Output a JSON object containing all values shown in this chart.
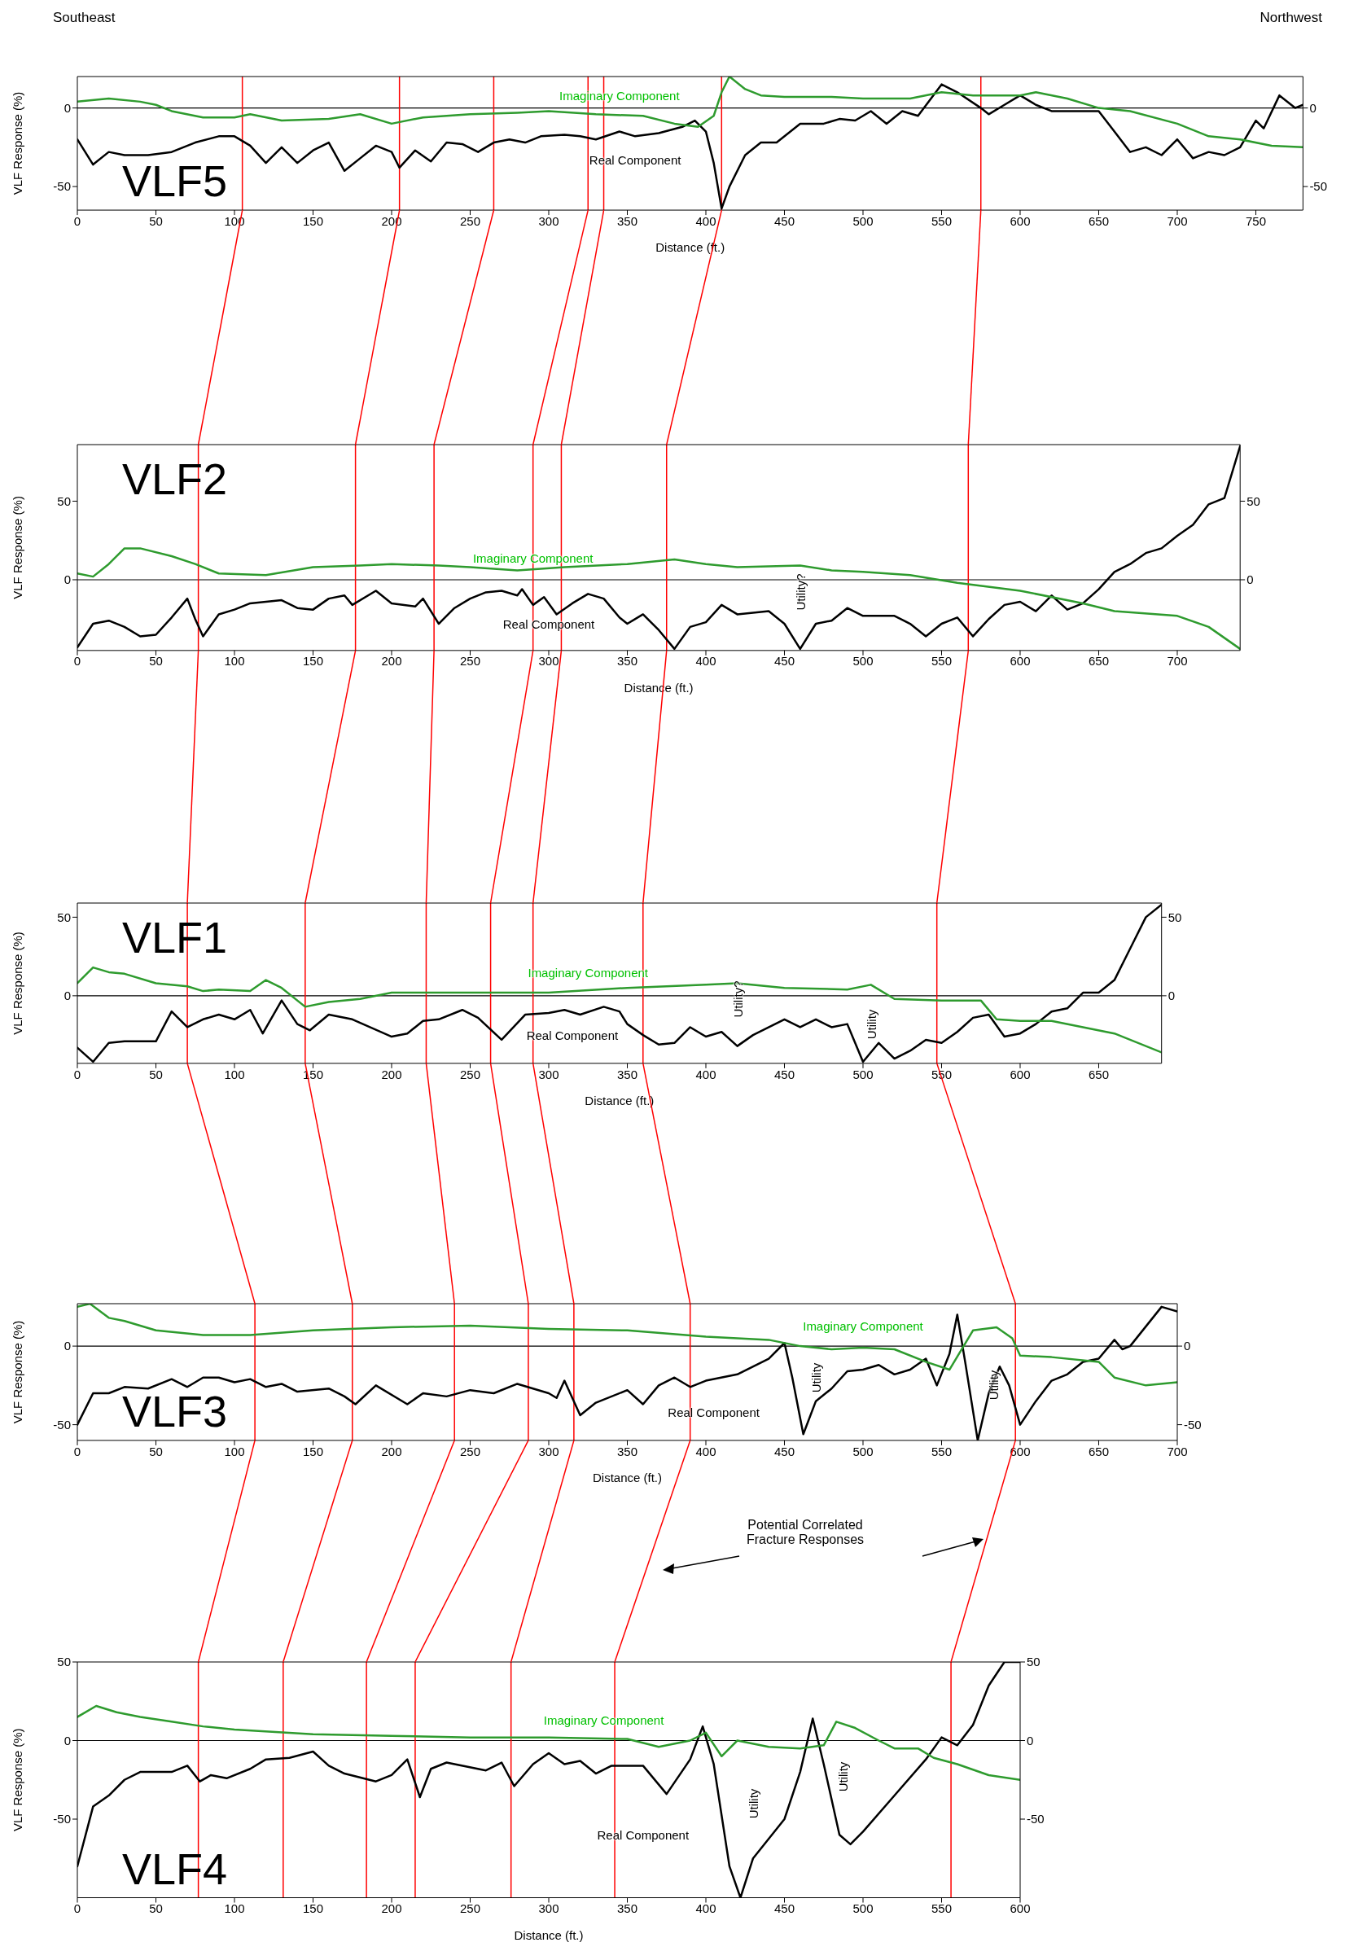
{
  "chart_data": [
    {
      "type": "line",
      "title": "VLF5",
      "xlabel": "Distance (ft.)",
      "ylabel": "VLF Response (%)",
      "xlim": [
        0,
        780
      ],
      "ylim": [
        -65,
        20
      ],
      "y2lim": [
        -65,
        20
      ],
      "line_style": "solid",
      "xticks": [
        0,
        50,
        100,
        150,
        200,
        250,
        300,
        350,
        400,
        450,
        500,
        550,
        600,
        650,
        700,
        750
      ],
      "yticks": [
        -50,
        0
      ],
      "y2ticks": [
        -50,
        0
      ],
      "series": [
        {
          "color": "#000000",
          "x": [
            0,
            10,
            20,
            30,
            45,
            60,
            75,
            90,
            100,
            110,
            120,
            130,
            140,
            150,
            160,
            170,
            180,
            190,
            200,
            205,
            215,
            225,
            235,
            245,
            255,
            265,
            275,
            285,
            295,
            310,
            320,
            330,
            345,
            355,
            370,
            385,
            393,
            400,
            405,
            410,
            415,
            425,
            435,
            445,
            460,
            475,
            485,
            495,
            505,
            515,
            525,
            535,
            550,
            560,
            575,
            580,
            590,
            600,
            610,
            620,
            640,
            650,
            660,
            670,
            680,
            690,
            700,
            710,
            720,
            730,
            740,
            750,
            755,
            765,
            775,
            780
          ],
          "values": [
            -20,
            -36,
            -28,
            -30,
            -30,
            -28,
            -22,
            -18,
            -18,
            -24,
            -35,
            -25,
            -35,
            -27,
            -22,
            -40,
            -32,
            -24,
            -28,
            -38,
            -27,
            -34,
            -22,
            -23,
            -28,
            -22,
            -20,
            -22,
            -18,
            -17,
            -18,
            -20,
            -15,
            -18,
            -16,
            -12,
            -8,
            -15,
            -35,
            -64,
            -50,
            -30,
            -22,
            -22,
            -10,
            -10,
            -7,
            -8,
            -2,
            -10,
            -2,
            -5,
            15,
            10,
            0,
            -4,
            2,
            8,
            2,
            -2,
            -2,
            -2,
            -15,
            -28,
            -25,
            -30,
            -20,
            -32,
            -28,
            -30,
            -25,
            -8,
            -13,
            8,
            0,
            2
          ]
        },
        {
          "color": "#2e9b2e",
          "x": [
            0,
            20,
            40,
            50,
            60,
            80,
            100,
            110,
            130,
            160,
            180,
            200,
            220,
            250,
            280,
            300,
            330,
            360,
            380,
            395,
            405,
            410,
            415,
            425,
            435,
            450,
            480,
            500,
            530,
            550,
            570,
            600,
            610,
            630,
            650,
            670,
            700,
            720,
            740,
            760,
            780
          ],
          "values": [
            4,
            6,
            4,
            2,
            -2,
            -6,
            -6,
            -4,
            -8,
            -7,
            -4,
            -10,
            -6,
            -4,
            -3,
            -2,
            -4,
            -5,
            -10,
            -12,
            -5,
            10,
            20,
            12,
            8,
            7,
            7,
            6,
            6,
            10,
            8,
            8,
            10,
            6,
            0,
            -2,
            -10,
            -18,
            -20,
            -24,
            -25
          ]
        }
      ],
      "ref_lines": [
        {
          "axis": "y",
          "value": 0,
          "color": "#000000"
        },
        {
          "axis": "x",
          "value": 105,
          "color": "#ff0000"
        },
        {
          "axis": "x",
          "value": 205,
          "color": "#ff0000"
        },
        {
          "axis": "x",
          "value": 265,
          "color": "#ff0000"
        },
        {
          "axis": "x",
          "value": 325,
          "color": "#ff0000"
        },
        {
          "axis": "x",
          "value": 335,
          "color": "#ff0000"
        },
        {
          "axis": "x",
          "value": 410,
          "color": "#ff0000"
        },
        {
          "axis": "x",
          "value": 575,
          "color": "#ff0000"
        }
      ],
      "annotations": [
        "Southeast",
        "Northwest",
        "Imaginary Component",
        "Real Component"
      ]
    },
    {
      "type": "line",
      "title": "VLF2",
      "xlabel": "Distance (ft.)",
      "ylabel": "VLF Response (%)",
      "xlim": [
        0,
        740
      ],
      "ylim": [
        -45,
        86
      ],
      "y2lim": [
        -45,
        86
      ],
      "line_style": "solid",
      "xticks": [
        0,
        50,
        100,
        150,
        200,
        250,
        300,
        350,
        400,
        450,
        500,
        550,
        600,
        650,
        700
      ],
      "yticks": [
        0,
        50
      ],
      "y2ticks": [
        0,
        50
      ],
      "series": [
        {
          "color": "#000000",
          "x": [
            0,
            10,
            20,
            30,
            40,
            50,
            60,
            70,
            75,
            80,
            90,
            100,
            110,
            130,
            140,
            150,
            160,
            170,
            175,
            190,
            200,
            215,
            220,
            230,
            240,
            250,
            260,
            270,
            280,
            283,
            290,
            297,
            305,
            315,
            325,
            335,
            345,
            350,
            360,
            370,
            380,
            390,
            400,
            410,
            420,
            430,
            440,
            450,
            460,
            470,
            480,
            490,
            500,
            520,
            530,
            540,
            550,
            560,
            570,
            580,
            590,
            600,
            610,
            620,
            630,
            640,
            650,
            660,
            670,
            680,
            690,
            700,
            710,
            720,
            730,
            740
          ],
          "values": [
            -43,
            -28,
            -26,
            -30,
            -36,
            -35,
            -24,
            -12,
            -25,
            -36,
            -22,
            -19,
            -15,
            -13,
            -18,
            -19,
            -12,
            -10,
            -16,
            -7,
            -15,
            -17,
            -12,
            -28,
            -18,
            -12,
            -8,
            -7,
            -10,
            -6,
            -16,
            -11,
            -22,
            -15,
            -9,
            -12,
            -24,
            -28,
            -22,
            -32,
            -44,
            -30,
            -27,
            -16,
            -22,
            -21,
            -20,
            -28,
            -44,
            -28,
            -26,
            -18,
            -23,
            -23,
            -28,
            -36,
            -28,
            -24,
            -36,
            -25,
            -16,
            -14,
            -20,
            -10,
            -19,
            -15,
            -6,
            5,
            10,
            17,
            20,
            28,
            35,
            48,
            52,
            85
          ]
        },
        {
          "color": "#2e9b2e",
          "x": [
            0,
            10,
            20,
            30,
            40,
            60,
            75,
            90,
            120,
            150,
            180,
            200,
            230,
            250,
            280,
            310,
            350,
            380,
            400,
            420,
            460,
            480,
            500,
            530,
            560,
            600,
            640,
            660,
            700,
            720,
            740
          ],
          "values": [
            4,
            2,
            10,
            20,
            20,
            15,
            10,
            4,
            3,
            8,
            9,
            10,
            9,
            8,
            6,
            8,
            10,
            13,
            10,
            8,
            9,
            6,
            5,
            3,
            -2,
            -7,
            -15,
            -20,
            -23,
            -30,
            -44
          ]
        }
      ],
      "ref_lines": [
        {
          "axis": "y",
          "value": 0,
          "color": "#000000"
        },
        {
          "axis": "x",
          "value": 77,
          "color": "#ff0000"
        },
        {
          "axis": "x",
          "value": 177,
          "color": "#ff0000"
        },
        {
          "axis": "x",
          "value": 227,
          "color": "#ff0000"
        },
        {
          "axis": "x",
          "value": 290,
          "color": "#ff0000"
        },
        {
          "axis": "x",
          "value": 308,
          "color": "#ff0000"
        },
        {
          "axis": "x",
          "value": 375,
          "color": "#ff0000"
        },
        {
          "axis": "x",
          "value": 567,
          "color": "#ff0000"
        }
      ],
      "annotations": [
        "Imaginary Component",
        "Real Component",
        "Utility?"
      ]
    },
    {
      "type": "line",
      "title": "VLF1",
      "xlabel": "Distance (ft.)",
      "ylabel": "VLF Response (%)",
      "xlim": [
        0,
        690
      ],
      "ylim": [
        -43,
        59
      ],
      "y2lim": [
        -43,
        59
      ],
      "line_style": "solid",
      "xticks": [
        0,
        50,
        100,
        150,
        200,
        250,
        300,
        350,
        400,
        450,
        500,
        550,
        600,
        650
      ],
      "yticks": [
        0,
        50
      ],
      "y2ticks": [
        0,
        50
      ],
      "series": [
        {
          "color": "#000000",
          "x": [
            0,
            10,
            20,
            30,
            45,
            50,
            60,
            70,
            80,
            90,
            100,
            110,
            118,
            130,
            140,
            148,
            160,
            175,
            200,
            210,
            220,
            230,
            245,
            255,
            270,
            285,
            300,
            310,
            320,
            335,
            345,
            350,
            360,
            370,
            380,
            390,
            400,
            410,
            420,
            430,
            450,
            460,
            470,
            480,
            490,
            500,
            510,
            520,
            530,
            540,
            550,
            560,
            570,
            580,
            590,
            600,
            610,
            620,
            630,
            640,
            650,
            660,
            670,
            680,
            690
          ],
          "values": [
            -33,
            -42,
            -30,
            -29,
            -29,
            -29,
            -10,
            -20,
            -15,
            -12,
            -15,
            -9,
            -24,
            -3,
            -18,
            -22,
            -12,
            -15,
            -26,
            -24,
            -16,
            -15,
            -9,
            -14,
            -28,
            -12,
            -11,
            -9,
            -12,
            -7,
            -10,
            -18,
            -25,
            -31,
            -30,
            -20,
            -26,
            -23,
            -32,
            -25,
            -15,
            -20,
            -15,
            -20,
            -18,
            -42,
            -30,
            -40,
            -35,
            -28,
            -30,
            -23,
            -14,
            -12,
            -26,
            -24,
            -18,
            -10,
            -8,
            2,
            2,
            10,
            30,
            50,
            58
          ]
        },
        {
          "color": "#2e9b2e",
          "x": [
            0,
            10,
            20,
            30,
            50,
            70,
            80,
            90,
            110,
            120,
            130,
            145,
            160,
            180,
            200,
            250,
            300,
            350,
            400,
            420,
            450,
            490,
            505,
            520,
            550,
            575,
            585,
            600,
            620,
            640,
            660,
            690
          ],
          "values": [
            8,
            18,
            15,
            14,
            8,
            6,
            3,
            4,
            3,
            10,
            5,
            -7,
            -4,
            -2,
            2,
            2,
            2,
            5,
            7,
            8,
            5,
            4,
            7,
            -2,
            -3,
            -3,
            -15,
            -16,
            -16,
            -20,
            -24,
            -36
          ]
        }
      ],
      "ref_lines": [
        {
          "axis": "y",
          "value": 0,
          "color": "#000000"
        },
        {
          "axis": "x",
          "value": 70,
          "color": "#ff0000"
        },
        {
          "axis": "x",
          "value": 145,
          "color": "#ff0000"
        },
        {
          "axis": "x",
          "value": 222,
          "color": "#ff0000"
        },
        {
          "axis": "x",
          "value": 263,
          "color": "#ff0000"
        },
        {
          "axis": "x",
          "value": 290,
          "color": "#ff0000"
        },
        {
          "axis": "x",
          "value": 360,
          "color": "#ff0000"
        },
        {
          "axis": "x",
          "value": 547,
          "color": "#ff0000"
        }
      ],
      "annotations": [
        "Imaginary Component",
        "Real Component",
        "Utility?",
        "Utility"
      ]
    },
    {
      "type": "line",
      "title": "VLF3",
      "xlabel": "Distance (ft.)",
      "ylabel": "VLF Response (%)",
      "xlim": [
        0,
        700
      ],
      "ylim": [
        -60,
        27
      ],
      "y2lim": [
        -60,
        27
      ],
      "line_style": "solid",
      "xticks": [
        0,
        50,
        100,
        150,
        200,
        250,
        300,
        350,
        400,
        450,
        500,
        550,
        600,
        650,
        700
      ],
      "yticks": [
        -50,
        0
      ],
      "y2ticks": [
        -50,
        0
      ],
      "series": [
        {
          "color": "#000000",
          "x": [
            0,
            10,
            20,
            30,
            45,
            60,
            70,
            80,
            90,
            100,
            110,
            120,
            130,
            140,
            160,
            170,
            177,
            190,
            210,
            220,
            235,
            250,
            265,
            280,
            300,
            305,
            310,
            320,
            330,
            350,
            360,
            370,
            380,
            390,
            400,
            420,
            440,
            450,
            455,
            462,
            470,
            480,
            490,
            500,
            510,
            520,
            530,
            540,
            547,
            555,
            560,
            565,
            573,
            580,
            587,
            593,
            600,
            610,
            620,
            630,
            640,
            650,
            660,
            665,
            670,
            690,
            700
          ],
          "values": [
            -50,
            -30,
            -30,
            -26,
            -27,
            -21,
            -26,
            -20,
            -20,
            -23,
            -21,
            -26,
            -24,
            -29,
            -27,
            -32,
            -37,
            -25,
            -37,
            -30,
            -32,
            -28,
            -30,
            -24,
            -30,
            -33,
            -22,
            -44,
            -36,
            -28,
            -37,
            -25,
            -20,
            -26,
            -22,
            -18,
            -8,
            2,
            -20,
            -56,
            -35,
            -27,
            -16,
            -15,
            -12,
            -18,
            -15,
            -8,
            -25,
            -5,
            20,
            -10,
            -60,
            -30,
            -13,
            -25,
            -50,
            -35,
            -22,
            -18,
            -10,
            -8,
            4,
            -2,
            0,
            25,
            22
          ]
        },
        {
          "color": "#2e9b2e",
          "x": [
            0,
            8,
            20,
            30,
            50,
            80,
            110,
            150,
            200,
            250,
            300,
            350,
            400,
            440,
            460,
            480,
            500,
            520,
            540,
            555,
            570,
            585,
            595,
            600,
            620,
            650,
            660,
            680,
            700
          ],
          "values": [
            25,
            27,
            18,
            16,
            10,
            7,
            7,
            10,
            12,
            13,
            11,
            10,
            6,
            4,
            0,
            -2,
            -1,
            -2,
            -10,
            -15,
            10,
            12,
            5,
            -6,
            -7,
            -10,
            -20,
            -25,
            -23
          ]
        }
      ],
      "ref_lines": [
        {
          "axis": "y",
          "value": 0,
          "color": "#000000"
        },
        {
          "axis": "x",
          "value": 113,
          "color": "#ff0000"
        },
        {
          "axis": "x",
          "value": 175,
          "color": "#ff0000"
        },
        {
          "axis": "x",
          "value": 240,
          "color": "#ff0000"
        },
        {
          "axis": "x",
          "value": 287,
          "color": "#ff0000"
        },
        {
          "axis": "x",
          "value": 316,
          "color": "#ff0000"
        },
        {
          "axis": "x",
          "value": 390,
          "color": "#ff0000"
        },
        {
          "axis": "x",
          "value": 597,
          "color": "#ff0000"
        }
      ],
      "annotations": [
        "Potential Correlated\nFracture Responses",
        "Imaginary Component",
        "Real Component",
        "Utility",
        "Utility"
      ]
    },
    {
      "type": "line",
      "title": "VLF4",
      "xlabel": "Distance (ft.)",
      "ylabel": "VLF Response (%)",
      "xlim": [
        0,
        600
      ],
      "ylim": [
        -100,
        50
      ],
      "y2lim": [
        -100,
        50
      ],
      "line_style": "solid",
      "xticks": [
        0,
        50,
        100,
        150,
        200,
        250,
        300,
        350,
        400,
        450,
        500,
        550,
        600
      ],
      "yticks": [
        -50,
        0,
        50
      ],
      "y2ticks": [
        -50,
        0,
        50
      ],
      "series": [
        {
          "color": "#000000",
          "x": [
            0,
            10,
            20,
            30,
            40,
            60,
            70,
            78,
            85,
            95,
            110,
            120,
            135,
            150,
            160,
            170,
            190,
            200,
            210,
            218,
            225,
            235,
            260,
            270,
            278,
            290,
            300,
            310,
            320,
            330,
            340,
            360,
            375,
            390,
            398,
            405,
            415,
            422,
            430,
            450,
            460,
            468,
            475,
            485,
            492,
            500,
            520,
            540,
            550,
            560,
            570,
            580,
            590,
            600
          ],
          "values": [
            -80,
            -42,
            -35,
            -25,
            -20,
            -20,
            -16,
            -26,
            -22,
            -24,
            -18,
            -12,
            -11,
            -7,
            -16,
            -21,
            -26,
            -22,
            -12,
            -36,
            -18,
            -14,
            -19,
            -14,
            -29,
            -15,
            -8,
            -15,
            -13,
            -21,
            -16,
            -16,
            -34,
            -12,
            9,
            -15,
            -80,
            -100,
            -75,
            -50,
            -20,
            14,
            -15,
            -60,
            -66,
            -58,
            -35,
            -12,
            2,
            -3,
            10,
            35,
            50,
            50
          ]
        },
        {
          "color": "#2e9b2e",
          "x": [
            0,
            12,
            25,
            40,
            60,
            80,
            100,
            150,
            200,
            250,
            300,
            350,
            370,
            390,
            400,
            410,
            420,
            440,
            460,
            475,
            483,
            495,
            510,
            520,
            535,
            545,
            560,
            580,
            600
          ],
          "values": [
            15,
            22,
            18,
            15,
            12,
            9,
            7,
            4,
            3,
            2,
            2,
            1,
            -4,
            0,
            5,
            -10,
            0,
            -4,
            -5,
            -3,
            12,
            8,
            0,
            -5,
            -5,
            -11,
            -15,
            -22,
            -25
          ]
        }
      ],
      "ref_lines": [
        {
          "axis": "y",
          "value": 0,
          "color": "#000000"
        },
        {
          "axis": "x",
          "value": 77,
          "color": "#ff0000"
        },
        {
          "axis": "x",
          "value": 131,
          "color": "#ff0000"
        },
        {
          "axis": "x",
          "value": 184,
          "color": "#ff0000"
        },
        {
          "axis": "x",
          "value": 215,
          "color": "#ff0000"
        },
        {
          "axis": "x",
          "value": 276,
          "color": "#ff0000"
        },
        {
          "axis": "x",
          "value": 342,
          "color": "#ff0000"
        },
        {
          "axis": "x",
          "value": 556,
          "color": "#ff0000"
        }
      ],
      "annotations": [
        "Imaginary Component",
        "Real Component",
        "Utility",
        "Utility"
      ]
    }
  ]
}
